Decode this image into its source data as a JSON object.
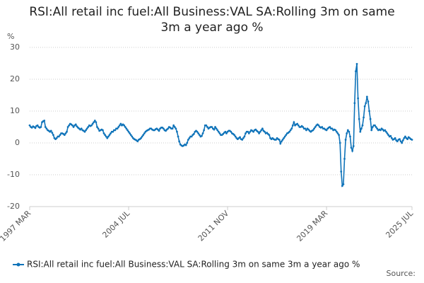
{
  "chart_data": {
    "type": "line",
    "title": "RSI:All retail inc fuel:All Business:VAL SA:Rolling 3m on same 3m a year ago %",
    "y_label": "%",
    "source": "Source:",
    "legend": "bottom",
    "grid": true,
    "ylim": [
      -20,
      30
    ],
    "yticks": [
      -20,
      -10,
      0,
      10,
      20,
      30
    ],
    "categories": [
      "1997 MAR",
      null,
      null,
      null,
      null,
      null,
      null,
      null,
      null,
      null,
      null,
      null,
      null,
      null,
      null,
      null,
      null,
      null,
      null,
      null,
      null,
      null,
      null,
      null,
      null,
      null,
      null,
      null,
      null,
      null,
      null,
      null,
      null,
      null,
      null,
      null,
      null,
      null,
      null,
      null,
      null,
      null,
      null,
      null,
      null,
      null,
      null,
      null,
      null,
      null,
      null,
      null,
      null,
      null,
      null,
      null,
      null,
      null,
      null,
      null,
      null,
      null,
      null,
      null,
      null,
      null,
      null,
      null,
      null,
      null,
      null,
      null,
      null,
      null,
      null,
      null,
      null,
      null,
      null,
      null,
      null,
      null,
      null,
      null,
      null,
      null,
      null,
      null,
      "2004 JUL",
      null,
      null,
      null,
      null,
      null,
      null,
      null,
      null,
      null,
      null,
      null,
      null,
      null,
      null,
      null,
      null,
      null,
      null,
      null,
      null,
      null,
      null,
      null,
      null,
      null,
      null,
      null,
      null,
      null,
      null,
      null,
      null,
      null,
      null,
      null,
      null,
      null,
      null,
      null,
      null,
      null,
      null,
      null,
      null,
      null,
      null,
      null,
      null,
      null,
      null,
      null,
      null,
      null,
      null,
      null,
      null,
      null,
      null,
      null,
      null,
      null,
      null,
      null,
      null,
      null,
      null,
      null,
      null,
      null,
      null,
      null,
      null,
      null,
      null,
      null,
      null,
      null,
      null,
      null,
      null,
      null,
      null,
      null,
      null,
      null,
      null,
      null,
      "2011 NOV",
      null,
      null,
      null,
      null,
      null,
      null,
      null,
      null,
      null,
      null,
      null,
      null,
      null,
      null,
      null,
      null,
      null,
      null,
      null,
      null,
      null,
      null,
      null,
      null,
      null,
      null,
      null,
      null,
      null,
      null,
      null,
      null,
      null,
      null,
      null,
      null,
      null,
      null,
      null,
      null,
      null,
      null,
      null,
      null,
      null,
      null,
      null,
      null,
      null,
      null,
      null,
      null,
      null,
      null,
      null,
      null,
      null,
      null,
      null,
      null,
      null,
      null,
      null,
      null,
      null,
      null,
      null,
      null,
      null,
      null,
      null,
      null,
      null,
      null,
      null,
      null,
      null,
      null,
      null,
      null,
      null,
      null,
      null,
      null,
      null,
      null,
      null,
      "2019 MAR",
      null,
      null,
      null,
      null,
      null,
      null,
      null,
      null,
      null,
      null,
      null,
      null,
      null,
      null,
      null,
      null,
      null,
      null,
      null,
      null,
      null,
      null,
      null,
      null,
      null,
      null,
      null,
      null,
      null,
      null,
      null,
      null,
      null,
      null,
      null,
      null,
      null,
      null,
      null,
      null,
      null,
      null,
      null,
      null,
      null,
      null,
      null,
      null,
      null,
      null,
      null,
      null,
      null,
      null,
      null,
      null,
      null,
      null,
      null,
      null,
      null,
      null,
      null,
      null,
      null,
      null,
      null,
      null,
      null,
      null,
      null,
      null,
      null,
      null,
      null,
      "2025 JUL"
    ],
    "series": [
      {
        "name": "RSI:All retail inc fuel:All Business:VAL SA:Rolling 3m on same 3m a year ago %",
        "color": "#0f73b9",
        "values": [
          5.5,
          5.0,
          4.8,
          5.2,
          5.0,
          4.7,
          5.3,
          5.5,
          5.0,
          4.8,
          5.0,
          6.5,
          6.8,
          7.0,
          5.0,
          4.5,
          4.0,
          3.8,
          3.5,
          3.8,
          3.2,
          2.5,
          1.5,
          1.2,
          1.5,
          2.0,
          2.0,
          2.5,
          3.0,
          3.0,
          2.8,
          2.5,
          3.0,
          3.5,
          5.0,
          5.5,
          6.0,
          5.8,
          5.5,
          5.0,
          5.5,
          5.8,
          5.2,
          4.8,
          4.5,
          4.2,
          4.5,
          4.0,
          3.8,
          3.5,
          4.0,
          4.5,
          5.0,
          5.5,
          5.3,
          5.5,
          6.0,
          6.5,
          7.0,
          6.5,
          5.0,
          4.5,
          3.8,
          4.0,
          4.2,
          4.0,
          3.0,
          2.5,
          2.0,
          1.5,
          2.0,
          2.5,
          3.0,
          3.5,
          3.5,
          4.0,
          4.0,
          4.5,
          4.5,
          5.0,
          5.5,
          6.0,
          5.5,
          5.8,
          5.5,
          5.0,
          4.5,
          4.0,
          3.5,
          3.0,
          2.5,
          2.0,
          1.5,
          1.2,
          1.0,
          0.8,
          0.5,
          1.0,
          1.2,
          1.5,
          2.0,
          2.5,
          3.0,
          3.5,
          3.8,
          4.0,
          4.2,
          4.5,
          4.5,
          4.2,
          4.0,
          4.0,
          4.3,
          4.5,
          4.2,
          3.8,
          4.5,
          4.8,
          4.8,
          4.5,
          4.0,
          3.8,
          4.2,
          4.5,
          5.0,
          4.8,
          4.5,
          4.5,
          5.5,
          5.0,
          4.5,
          3.5,
          2.0,
          0.5,
          -0.5,
          -0.8,
          -1.0,
          -0.8,
          -0.5,
          -0.7,
          0.0,
          1.0,
          1.5,
          2.0,
          2.0,
          2.5,
          2.8,
          3.5,
          3.8,
          3.5,
          3.0,
          2.5,
          2.0,
          2.2,
          3.0,
          4.0,
          5.5,
          5.5,
          5.0,
          4.5,
          4.8,
          5.0,
          5.0,
          4.5,
          4.2,
          5.0,
          4.5,
          4.0,
          3.5,
          3.0,
          2.5,
          2.5,
          2.8,
          3.2,
          3.5,
          3.0,
          3.5,
          3.8,
          3.8,
          3.5,
          3.0,
          2.8,
          2.5,
          2.0,
          1.5,
          1.2,
          1.5,
          1.8,
          1.2,
          1.0,
          1.5,
          2.0,
          3.0,
          3.5,
          3.5,
          3.0,
          3.5,
          4.0,
          3.8,
          3.5,
          4.0,
          4.2,
          3.8,
          3.5,
          3.0,
          3.5,
          4.0,
          4.5,
          3.8,
          3.5,
          3.0,
          3.2,
          2.8,
          2.5,
          1.5,
          1.2,
          1.5,
          1.2,
          1.0,
          1.0,
          1.5,
          1.2,
          1.0,
          -0.2,
          0.5,
          1.0,
          1.5,
          2.0,
          2.5,
          3.0,
          3.2,
          3.5,
          4.0,
          4.5,
          5.5,
          6.5,
          5.5,
          5.8,
          6.0,
          5.5,
          5.0,
          5.0,
          5.3,
          5.0,
          4.5,
          4.5,
          4.0,
          4.5,
          4.2,
          3.8,
          3.5,
          3.8,
          4.0,
          4.5,
          5.0,
          5.5,
          5.8,
          5.5,
          5.0,
          4.8,
          5.0,
          4.5,
          4.5,
          4.2,
          4.0,
          4.5,
          4.8,
          5.0,
          4.5,
          4.5,
          4.0,
          4.2,
          4.0,
          3.5,
          3.0,
          2.5,
          0.0,
          -9.0,
          -13.5,
          -13.0,
          -5.0,
          1.0,
          3.0,
          4.0,
          3.5,
          2.0,
          -1.5,
          -2.5,
          -1.0,
          12.5,
          22.5,
          24.8,
          14.0,
          7.5,
          3.5,
          4.5,
          5.5,
          8.0,
          11.5,
          12.5,
          14.5,
          13.0,
          10.0,
          7.5,
          4.0,
          5.0,
          5.5,
          5.5,
          5.0,
          4.5,
          4.0,
          4.2,
          4.0,
          4.5,
          4.2,
          3.8,
          4.0,
          3.5,
          3.0,
          2.5,
          2.0,
          2.2,
          1.5,
          1.0,
          1.2,
          1.5,
          0.8,
          0.5,
          1.0,
          1.2,
          0.5,
          0.0,
          0.8,
          1.5,
          2.0,
          1.5,
          1.2,
          1.8,
          1.5,
          1.2,
          1.0
        ]
      }
    ]
  }
}
